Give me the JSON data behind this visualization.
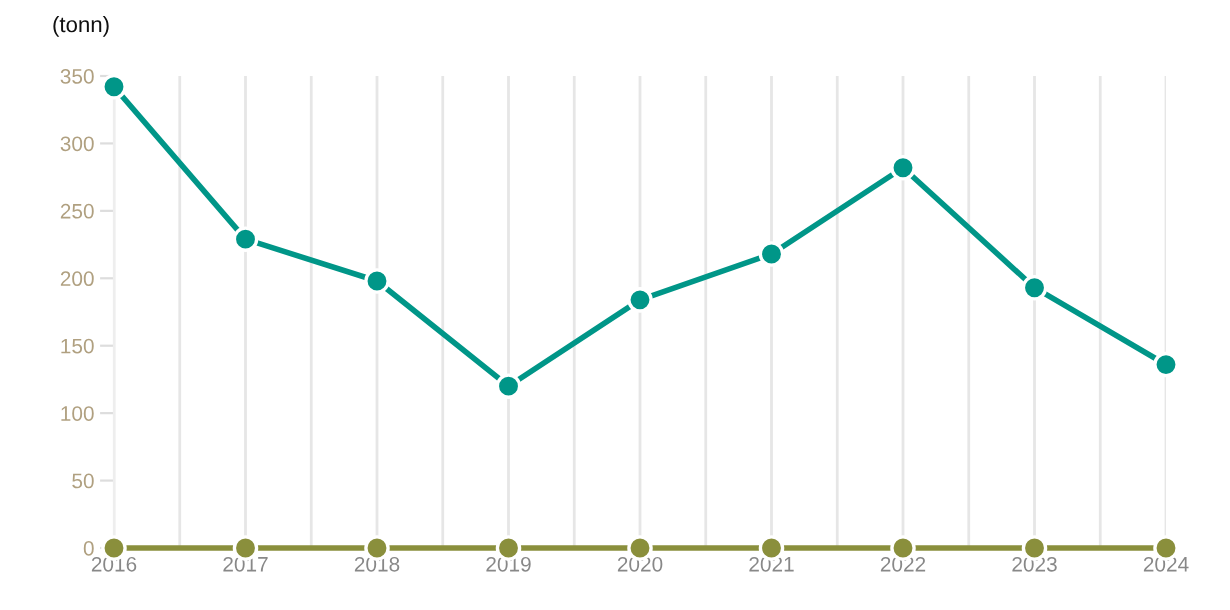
{
  "chart_data": {
    "type": "line",
    "ylabel": "(tonn)",
    "x": [
      2016,
      2017,
      2018,
      2019,
      2020,
      2021,
      2022,
      2023,
      2024
    ],
    "series": [
      {
        "color": "#009688",
        "values": [
          342,
          229,
          198,
          120,
          184,
          218,
          282,
          193,
          136
        ]
      },
      {
        "color": "#8a8f3c",
        "values": [
          0,
          0,
          0,
          0,
          0,
          0,
          0,
          0,
          0
        ]
      }
    ],
    "xlim": [
      2016,
      2024
    ],
    "xticks": [
      2016,
      {
        "value": 2016.5,
        "label": null
      },
      2017,
      {
        "value": 2017.5,
        "label": null
      },
      2018,
      {
        "value": 2018.5,
        "label": null
      },
      2019,
      {
        "value": 2019.5,
        "label": null
      },
      2020,
      {
        "value": 2020.5,
        "label": null
      },
      2021,
      {
        "value": 2021.5,
        "label": null
      },
      2022,
      {
        "value": 2022.5,
        "label": null
      },
      2023,
      {
        "value": 2023.5,
        "label": null
      },
      2024
    ],
    "ylim": [
      0,
      350
    ],
    "yticks": [
      0,
      50,
      100,
      150,
      200,
      250,
      300,
      350
    ],
    "grid": "x",
    "legend": false,
    "marker": "circle",
    "line_style": "solid"
  }
}
